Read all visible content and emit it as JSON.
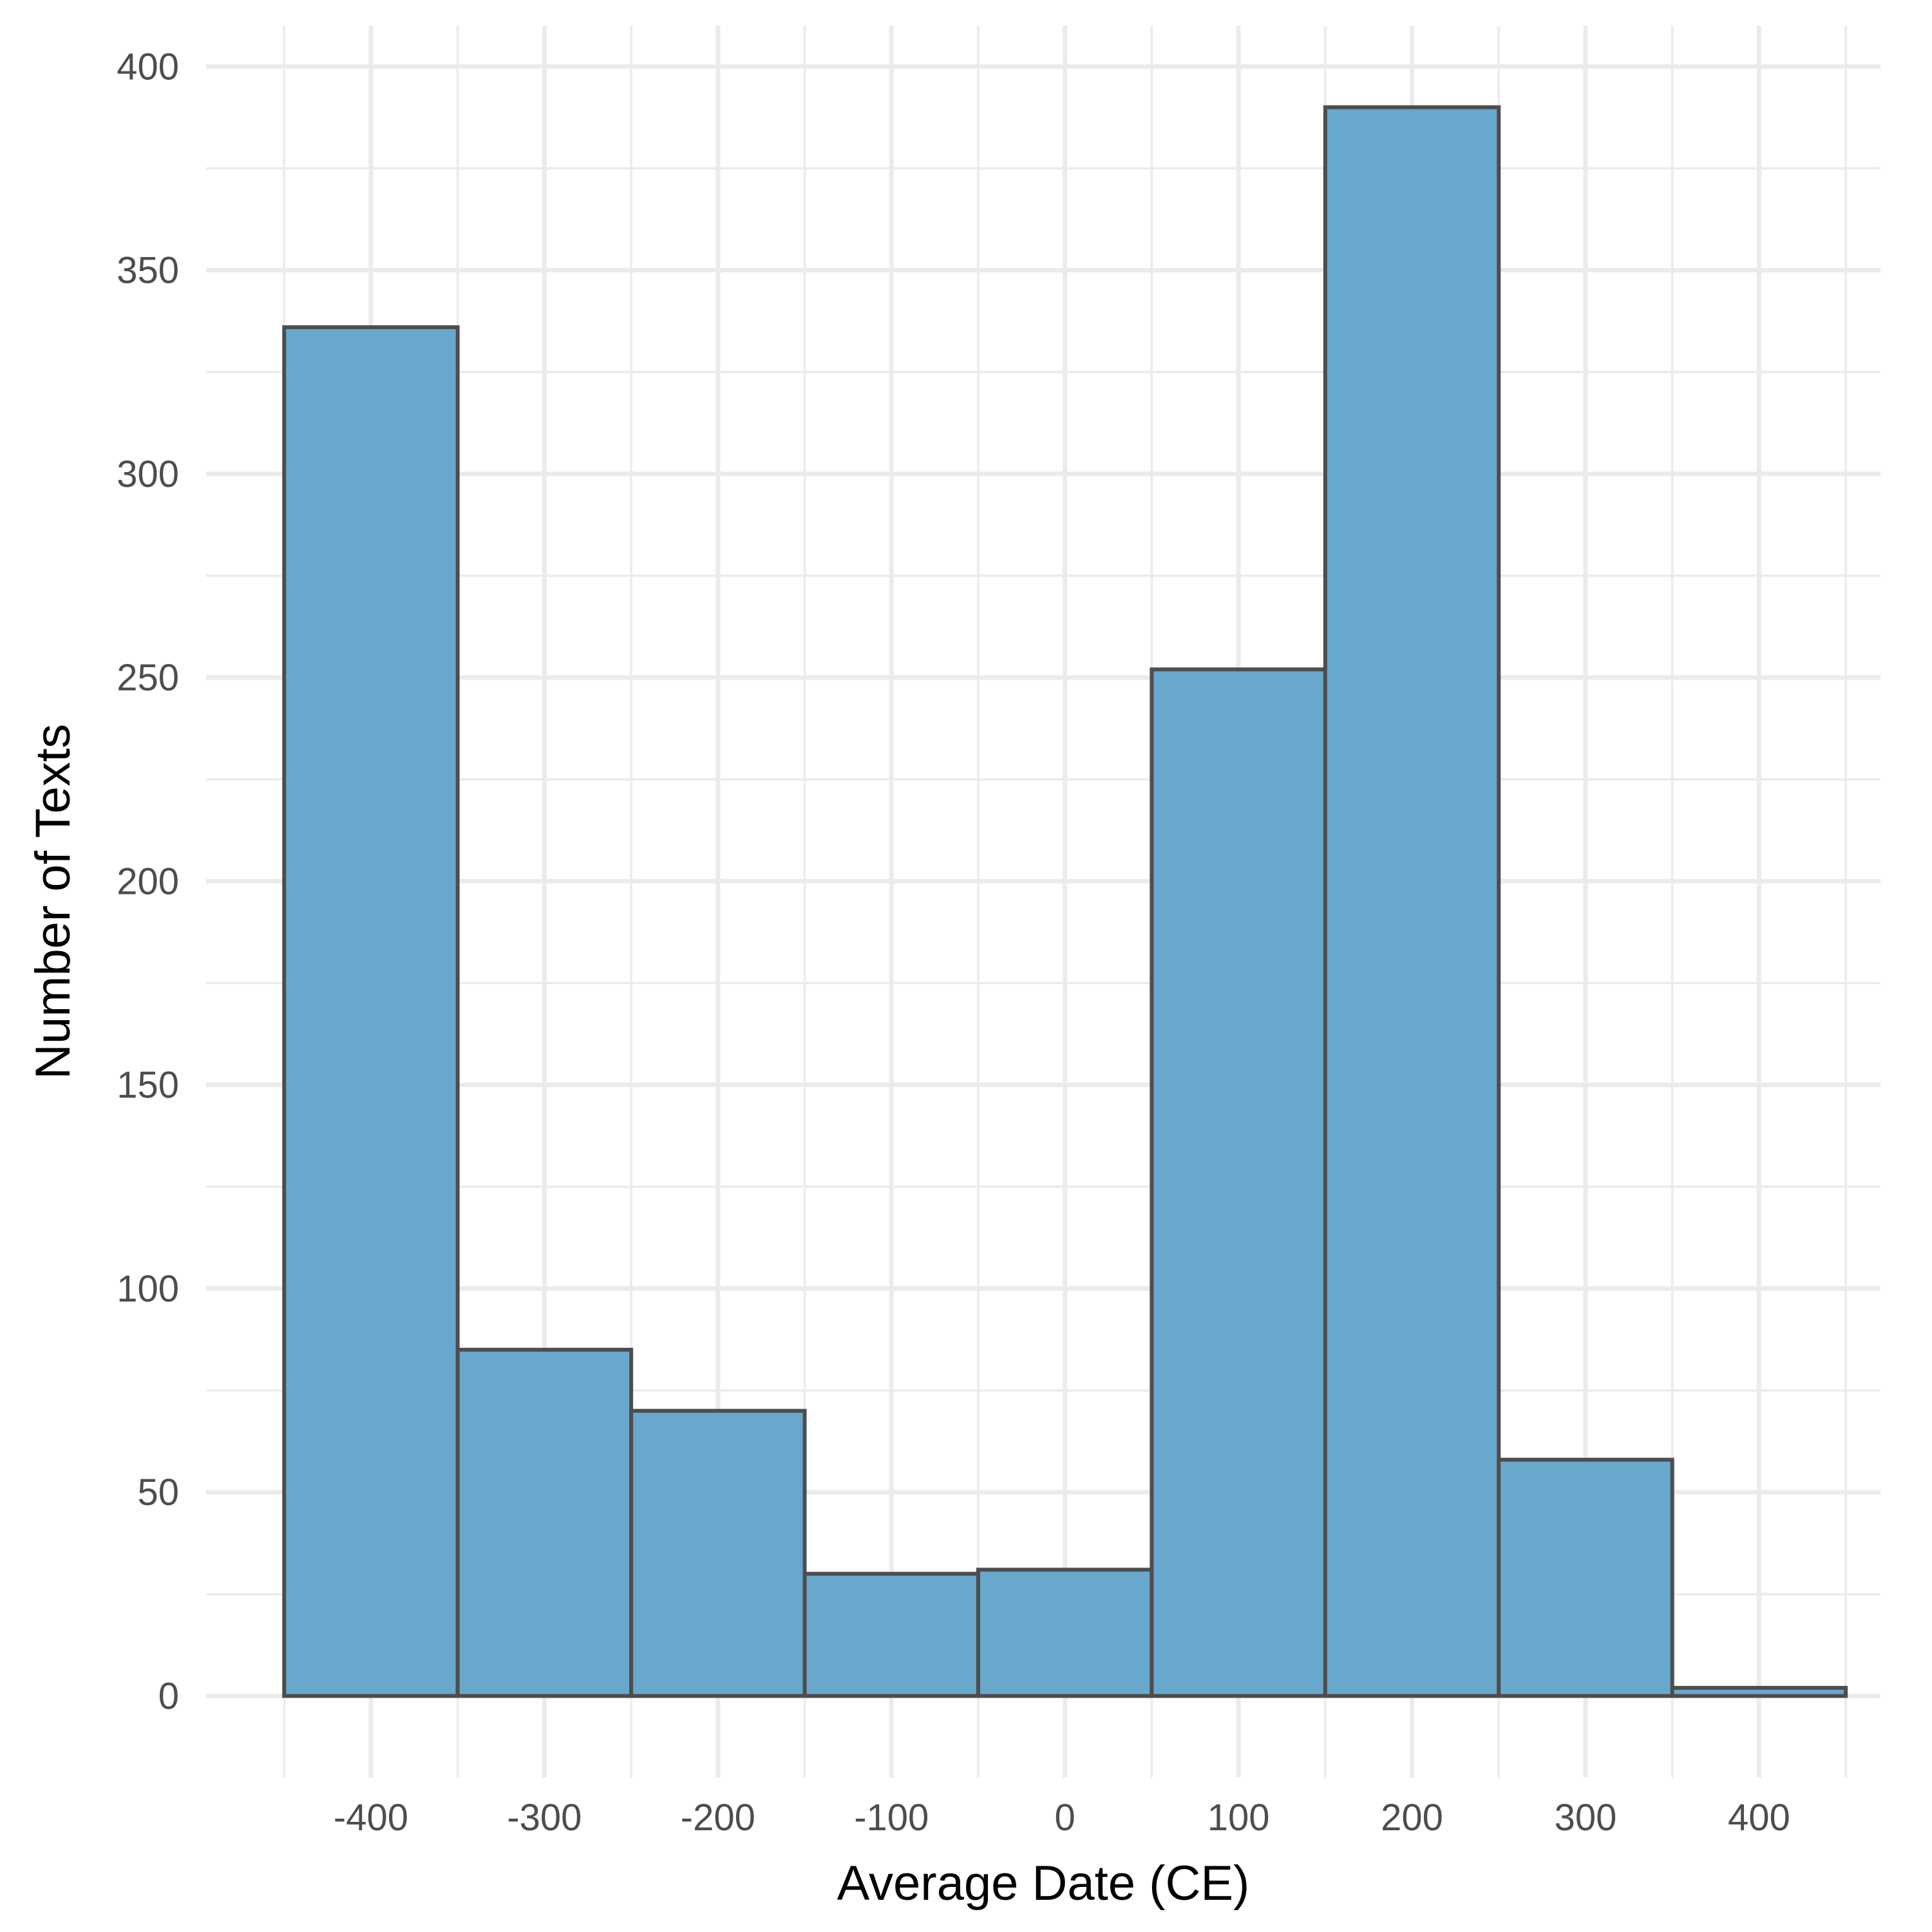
{
  "chart_data": {
    "type": "bar",
    "title": "",
    "xlabel": "Average Date (CE)",
    "ylabel": "Number of Texts",
    "bin_width": 100,
    "bins": [
      {
        "start": -450,
        "end": -350,
        "value": 336
      },
      {
        "start": -350,
        "end": -250,
        "value": 85
      },
      {
        "start": -250,
        "end": -150,
        "value": 70
      },
      {
        "start": -150,
        "end": -50,
        "value": 30
      },
      {
        "start": -50,
        "end": 50,
        "value": 31
      },
      {
        "start": 50,
        "end": 150,
        "value": 252
      },
      {
        "start": 150,
        "end": 250,
        "value": 390
      },
      {
        "start": 250,
        "end": 350,
        "value": 58
      },
      {
        "start": 350,
        "end": 450,
        "value": 2
      }
    ],
    "xlim": [
      -495,
      470
    ],
    "ylim": [
      -20,
      410
    ],
    "x_ticks": [
      -400,
      -300,
      -200,
      -100,
      0,
      100,
      200,
      300,
      400
    ],
    "x_tick_labels": [
      "-400",
      "-300",
      "-200",
      "-100",
      "0",
      "100",
      "200",
      "300",
      "400"
    ],
    "x_minor_ticks": [
      -450,
      -350,
      -250,
      -150,
      -50,
      50,
      150,
      250,
      350,
      450
    ],
    "y_ticks": [
      0,
      50,
      100,
      150,
      200,
      250,
      300,
      350,
      400
    ],
    "y_tick_labels": [
      "0",
      "50",
      "100",
      "150",
      "200",
      "250",
      "300",
      "350",
      "400"
    ],
    "y_minor_ticks": [
      25,
      75,
      125,
      175,
      225,
      275,
      325,
      375
    ],
    "grid": true,
    "legend": "none",
    "colors": {
      "bar_fill": "#69a8cd",
      "bar_stroke": "#4d4d4d",
      "grid": "#ebebeb",
      "tick_text": "#4d4d4d",
      "title_text": "#000000"
    }
  }
}
